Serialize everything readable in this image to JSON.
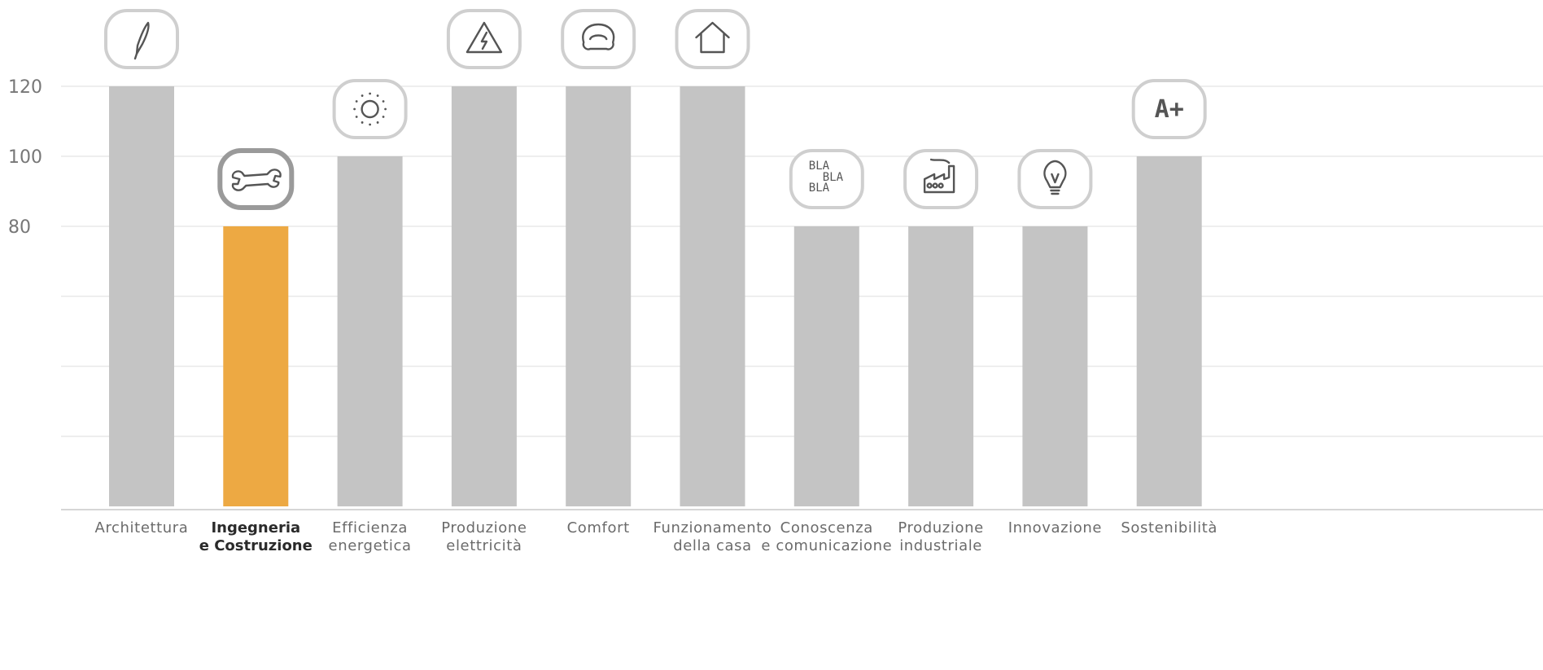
{
  "chart_data": {
    "type": "bar",
    "categories": [
      [
        "Architettura"
      ],
      [
        "Ingegneria",
        "e Costruzione"
      ],
      [
        "Efficienza",
        "energetica"
      ],
      [
        "Produzione",
        "elettricità"
      ],
      [
        "Comfort"
      ],
      [
        "Funzionamento",
        "della casa"
      ],
      [
        "Conoscenza",
        "e comunicazione"
      ],
      [
        "Produzione",
        "industriale"
      ],
      [
        "Innovazione"
      ],
      [
        "Sostenibilità"
      ]
    ],
    "values": [
      120,
      80,
      100,
      120,
      120,
      120,
      80,
      80,
      80,
      100
    ],
    "highlighted_index": 1,
    "icons": [
      "pen-icon",
      "wrench-icon",
      "sun-icon",
      "warning-icon",
      "armchair-icon",
      "house-icon",
      "speech-text-icon",
      "factory-icon",
      "lightbulb-icon",
      "rating-badge-icon"
    ],
    "icon_text": {
      "speech-text-icon": [
        "BLA",
        "BLA",
        "BLA"
      ],
      "rating-badge-icon": "A+"
    },
    "yticks": [
      120,
      100,
      80
    ],
    "ylim": [
      0,
      120
    ],
    "grid": true,
    "title": "",
    "xlabel": "",
    "ylabel": "",
    "colors": {
      "bar": "#c4c4c4",
      "highlight": "#eda943",
      "grid": "#e9e9e9",
      "axis": "#d6d6d6"
    }
  }
}
